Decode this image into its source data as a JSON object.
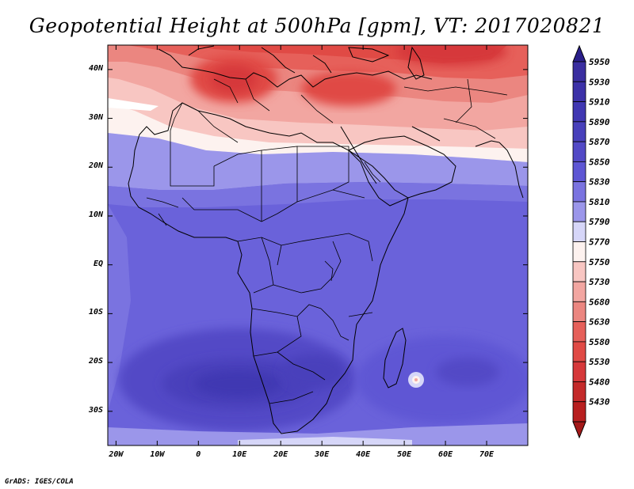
{
  "title": "Geopotential Height at 500hPa [gpm], VT: 2017020821",
  "credit": "GrADS: IGES/COLA",
  "map": {
    "lon_range": [
      -22,
      80
    ],
    "lat_range": [
      -37,
      45
    ],
    "lat_ticks": [
      {
        "value": 40,
        "label": "40N"
      },
      {
        "value": 30,
        "label": "30N"
      },
      {
        "value": 20,
        "label": "20N"
      },
      {
        "value": 10,
        "label": "10N"
      },
      {
        "value": 0,
        "label": "EQ"
      },
      {
        "value": -10,
        "label": "10S"
      },
      {
        "value": -20,
        "label": "20S"
      },
      {
        "value": -30,
        "label": "30S"
      }
    ],
    "lon_ticks": [
      {
        "value": -20,
        "label": "20W"
      },
      {
        "value": -10,
        "label": "10W"
      },
      {
        "value": 0,
        "label": "0"
      },
      {
        "value": 10,
        "label": "10E"
      },
      {
        "value": 20,
        "label": "20E"
      },
      {
        "value": 30,
        "label": "30E"
      },
      {
        "value": 40,
        "label": "40E"
      },
      {
        "value": 50,
        "label": "50E"
      },
      {
        "value": 60,
        "label": "60E"
      },
      {
        "value": 70,
        "label": "70E"
      }
    ]
  },
  "colorbar": {
    "levels": [
      {
        "label": "5950",
        "color": "#3a2ea0"
      },
      {
        "label": "5930",
        "color": "#3c31a8"
      },
      {
        "label": "5910",
        "color": "#4037b2"
      },
      {
        "label": "5890",
        "color": "#4840bb"
      },
      {
        "label": "5870",
        "color": "#5249c6"
      },
      {
        "label": "5850",
        "color": "#5e56d4"
      },
      {
        "label": "5830",
        "color": "#7a73e0"
      },
      {
        "label": "5810",
        "color": "#9b96ea"
      },
      {
        "label": "5790",
        "color": "#d6d6f8"
      },
      {
        "label": "5770",
        "color": "#fdf2ef"
      },
      {
        "label": "5750",
        "color": "#f8c6c2"
      },
      {
        "label": "5730",
        "color": "#f2a6a1"
      },
      {
        "label": "5680",
        "color": "#eb8680"
      },
      {
        "label": "5630",
        "color": "#e6605a"
      },
      {
        "label": "5580",
        "color": "#e04a45"
      },
      {
        "label": "5530",
        "color": "#d6383a"
      },
      {
        "label": "5480",
        "color": "#c42a2a"
      },
      {
        "label": "5430",
        "color": "#b81f1f"
      }
    ],
    "top_arrow_color": "#2a1f8a",
    "bottom_arrow_color": "#a31818"
  }
}
